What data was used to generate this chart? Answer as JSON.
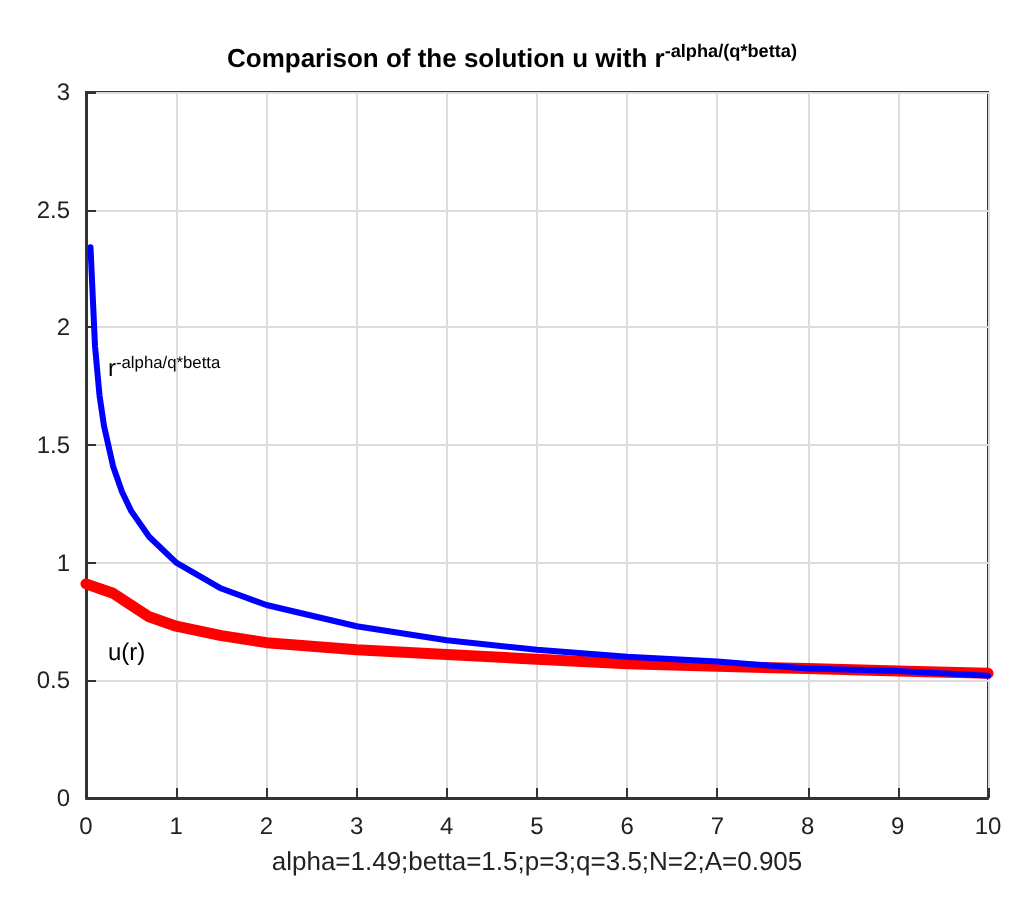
{
  "chart_data": {
    "type": "line",
    "title": "Comparison of the solution u with r$^{-alpha/(q*betta)}$",
    "xlabel": "alpha=1.49;betta=1.5;p=3;q=3.5;N=2;A=0.905",
    "series": [
      {
        "color": "#ff0000",
        "x": [
          0,
          0.3,
          0.5,
          0.7,
          1,
          1.5,
          2,
          3,
          4,
          5,
          6,
          7,
          8,
          9,
          10
        ],
        "values": [
          0.91,
          0.87,
          0.82,
          0.77,
          0.73,
          0.69,
          0.66,
          0.63,
          0.61,
          0.59,
          0.57,
          0.56,
          0.55,
          0.54,
          0.53
        ]
      },
      {
        "color": "#0000ff",
        "x": [
          0.05,
          0.1,
          0.15,
          0.2,
          0.3,
          0.4,
          0.5,
          0.7,
          1,
          1.5,
          2,
          3,
          4,
          5,
          6,
          7,
          8,
          9,
          10
        ],
        "values": [
          2.34,
          1.92,
          1.71,
          1.58,
          1.41,
          1.3,
          1.22,
          1.11,
          1,
          0.89,
          0.82,
          0.73,
          0.67,
          0.63,
          0.6,
          0.58,
          0.55,
          0.54,
          0.52
        ]
      }
    ],
    "annotations": [
      "r$^{-alpha/q*betta}$",
      "u(r)"
    ],
    "xlim": [
      0,
      10
    ],
    "xticks": [
      0,
      1,
      2,
      3,
      4,
      5,
      6,
      7,
      8,
      9,
      10
    ],
    "ylim": [
      0,
      3
    ],
    "yticks": [
      0,
      0.5,
      1,
      1.5,
      2,
      2.5,
      3
    ],
    "grid": true,
    "marker": "none",
    "line_style": "solid"
  }
}
